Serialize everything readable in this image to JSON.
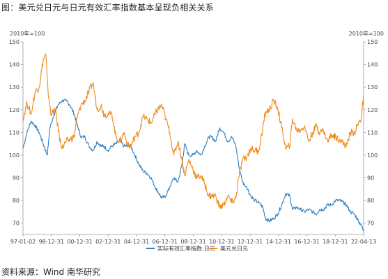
{
  "title": "图：美元兑日元与日元有效汇率指数基本呈现负相关关系",
  "source": "资料来源：Wind  南华研究",
  "chart_data": {
    "type": "line",
    "unit_left": "2010年=100",
    "unit_right": "2010年=100",
    "x_ticks": [
      "97-01-02",
      "98-12-31",
      "00-12-31",
      "02-12-31",
      "04-12-31",
      "06-12-31",
      "08-12-31",
      "10-12-31",
      "12-12-31",
      "14-12-31",
      "16-12-31",
      "18-12-31",
      "22-04-13"
    ],
    "y_left": {
      "ticks": [
        70,
        80,
        90,
        100,
        110,
        120,
        130,
        140,
        150
      ],
      "ylim": [
        65,
        150
      ]
    },
    "y_right": {
      "ticks": [
        70,
        80,
        90,
        100,
        110,
        120,
        130,
        140,
        150
      ],
      "ylim": [
        65,
        150
      ]
    },
    "x_range": [
      1997.0,
      2022.28
    ],
    "legend_position": "bottom",
    "colors": {
      "series1": "#2e7fbf",
      "series2": "#f08a1c"
    },
    "series": [
      {
        "name": "实际有效汇率指数:日元",
        "axis": "left",
        "points": [
          [
            1997.0,
            103
          ],
          [
            1997.3,
            110
          ],
          [
            1997.6,
            115
          ],
          [
            1997.9,
            113
          ],
          [
            1998.2,
            110
          ],
          [
            1998.5,
            105
          ],
          [
            1998.8,
            100
          ],
          [
            1999.0,
            112
          ],
          [
            1999.3,
            118
          ],
          [
            1999.6,
            122
          ],
          [
            1999.9,
            124
          ],
          [
            2000.2,
            124
          ],
          [
            2000.5,
            122
          ],
          [
            2000.8,
            118
          ],
          [
            2001.0,
            114
          ],
          [
            2001.3,
            108
          ],
          [
            2001.6,
            108
          ],
          [
            2001.9,
            104
          ],
          [
            2002.2,
            102
          ],
          [
            2002.5,
            106
          ],
          [
            2002.8,
            104
          ],
          [
            2003.0,
            104
          ],
          [
            2003.3,
            102
          ],
          [
            2003.6,
            104
          ],
          [
            2003.9,
            105
          ],
          [
            2004.2,
            106
          ],
          [
            2004.5,
            104
          ],
          [
            2004.8,
            104
          ],
          [
            2005.0,
            104
          ],
          [
            2005.3,
            100
          ],
          [
            2005.6,
            96
          ],
          [
            2005.9,
            93
          ],
          [
            2006.2,
            92
          ],
          [
            2006.5,
            90
          ],
          [
            2006.8,
            86
          ],
          [
            2007.0,
            84
          ],
          [
            2007.3,
            81
          ],
          [
            2007.6,
            82
          ],
          [
            2007.9,
            86
          ],
          [
            2008.2,
            90
          ],
          [
            2008.5,
            88
          ],
          [
            2008.8,
            96
          ],
          [
            2009.0,
            105
          ],
          [
            2009.3,
            100
          ],
          [
            2009.6,
            100
          ],
          [
            2009.9,
            102
          ],
          [
            2010.2,
            100
          ],
          [
            2010.5,
            104
          ],
          [
            2010.8,
            108
          ],
          [
            2011.0,
            108
          ],
          [
            2011.3,
            106
          ],
          [
            2011.6,
            112
          ],
          [
            2011.9,
            110
          ],
          [
            2012.2,
            106
          ],
          [
            2012.5,
            108
          ],
          [
            2012.8,
            104
          ],
          [
            2013.0,
            96
          ],
          [
            2013.3,
            88
          ],
          [
            2013.6,
            86
          ],
          [
            2013.9,
            82
          ],
          [
            2014.2,
            80
          ],
          [
            2014.5,
            79
          ],
          [
            2014.8,
            77
          ],
          [
            2015.0,
            72
          ],
          [
            2015.3,
            71
          ],
          [
            2015.6,
            72
          ],
          [
            2015.9,
            74
          ],
          [
            2016.2,
            78
          ],
          [
            2016.5,
            83
          ],
          [
            2016.8,
            82
          ],
          [
            2017.0,
            76
          ],
          [
            2017.3,
            77
          ],
          [
            2017.6,
            76
          ],
          [
            2017.9,
            75
          ],
          [
            2018.2,
            76
          ],
          [
            2018.5,
            75
          ],
          [
            2018.8,
            74
          ],
          [
            2019.0,
            76
          ],
          [
            2019.3,
            76
          ],
          [
            2019.6,
            78
          ],
          [
            2019.9,
            78
          ],
          [
            2020.2,
            80
          ],
          [
            2020.5,
            80
          ],
          [
            2020.8,
            79
          ],
          [
            2021.0,
            78
          ],
          [
            2021.3,
            75
          ],
          [
            2021.6,
            74
          ],
          [
            2021.9,
            71
          ],
          [
            2022.1,
            69
          ],
          [
            2022.28,
            67
          ]
        ]
      },
      {
        "name": "美元兑日元",
        "axis": "right",
        "points": [
          [
            1997.0,
            116
          ],
          [
            1997.3,
            123
          ],
          [
            1997.6,
            118
          ],
          [
            1997.9,
            128
          ],
          [
            1998.2,
            130
          ],
          [
            1998.5,
            142
          ],
          [
            1998.7,
            144
          ],
          [
            1998.9,
            125
          ],
          [
            1999.1,
            118
          ],
          [
            1999.4,
            120
          ],
          [
            1999.7,
            108
          ],
          [
            1999.9,
            103
          ],
          [
            2000.2,
            106
          ],
          [
            2000.5,
            107
          ],
          [
            2000.8,
            108
          ],
          [
            2001.0,
            116
          ],
          [
            2001.3,
            122
          ],
          [
            2001.6,
            124
          ],
          [
            2001.9,
            128
          ],
          [
            2002.2,
            132
          ],
          [
            2002.5,
            120
          ],
          [
            2002.8,
            122
          ],
          [
            2003.0,
            118
          ],
          [
            2003.3,
            118
          ],
          [
            2003.6,
            118
          ],
          [
            2003.9,
            108
          ],
          [
            2004.2,
            106
          ],
          [
            2004.5,
            110
          ],
          [
            2004.8,
            104
          ],
          [
            2005.0,
            104
          ],
          [
            2005.3,
            108
          ],
          [
            2005.6,
            110
          ],
          [
            2005.9,
            117
          ],
          [
            2006.2,
            116
          ],
          [
            2006.5,
            114
          ],
          [
            2006.8,
            118
          ],
          [
            2007.0,
            120
          ],
          [
            2007.3,
            122
          ],
          [
            2007.6,
            116
          ],
          [
            2007.9,
            110
          ],
          [
            2008.2,
            100
          ],
          [
            2008.5,
            106
          ],
          [
            2008.8,
            98
          ],
          [
            2009.0,
            91
          ],
          [
            2009.3,
            98
          ],
          [
            2009.6,
            94
          ],
          [
            2009.9,
            90
          ],
          [
            2010.2,
            91
          ],
          [
            2010.5,
            87
          ],
          [
            2010.8,
            82
          ],
          [
            2011.0,
            82
          ],
          [
            2011.3,
            82
          ],
          [
            2011.6,
            77
          ],
          [
            2011.9,
            78
          ],
          [
            2012.2,
            82
          ],
          [
            2012.5,
            79
          ],
          [
            2012.8,
            81
          ],
          [
            2013.0,
            90
          ],
          [
            2013.3,
            98
          ],
          [
            2013.6,
            99
          ],
          [
            2013.9,
            103
          ],
          [
            2014.2,
            102
          ],
          [
            2014.5,
            102
          ],
          [
            2014.8,
            112
          ],
          [
            2015.0,
            119
          ],
          [
            2015.3,
            120
          ],
          [
            2015.6,
            124
          ],
          [
            2015.9,
            121
          ],
          [
            2016.2,
            112
          ],
          [
            2016.5,
            103
          ],
          [
            2016.8,
            104
          ],
          [
            2017.0,
            116
          ],
          [
            2017.3,
            111
          ],
          [
            2017.6,
            111
          ],
          [
            2017.9,
            113
          ],
          [
            2018.2,
            106
          ],
          [
            2018.5,
            110
          ],
          [
            2018.8,
            113
          ],
          [
            2019.0,
            110
          ],
          [
            2019.3,
            111
          ],
          [
            2019.6,
            106
          ],
          [
            2019.9,
            109
          ],
          [
            2020.2,
            108
          ],
          [
            2020.5,
            107
          ],
          [
            2020.8,
            105
          ],
          [
            2021.0,
            104
          ],
          [
            2021.3,
            110
          ],
          [
            2021.6,
            110
          ],
          [
            2021.9,
            114
          ],
          [
            2022.1,
            116
          ],
          [
            2022.28,
            126
          ]
        ]
      }
    ]
  }
}
